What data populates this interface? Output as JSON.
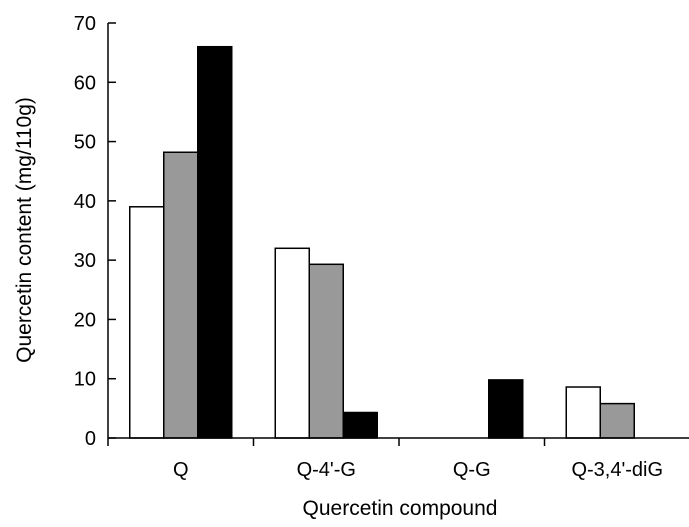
{
  "chart_data": {
    "type": "bar",
    "title": "",
    "xlabel": "Quercetin compound",
    "ylabel": "Quercetin content (mg/110g)",
    "categories": [
      "Q",
      "Q-4'-G",
      "Q-G",
      "Q-3,4'-diG"
    ],
    "ylim": [
      0,
      70
    ],
    "yticks": [
      0,
      10,
      20,
      30,
      40,
      50,
      60,
      70
    ],
    "grid": false,
    "legend": "none",
    "series": [
      {
        "color": "#ffffff",
        "values": [
          39,
          32,
          0,
          8.6
        ]
      },
      {
        "color": "#999999",
        "values": [
          48.2,
          29.3,
          0,
          5.8
        ]
      },
      {
        "color": "#000000",
        "values": [
          66,
          4.3,
          9.8,
          0
        ]
      }
    ]
  }
}
